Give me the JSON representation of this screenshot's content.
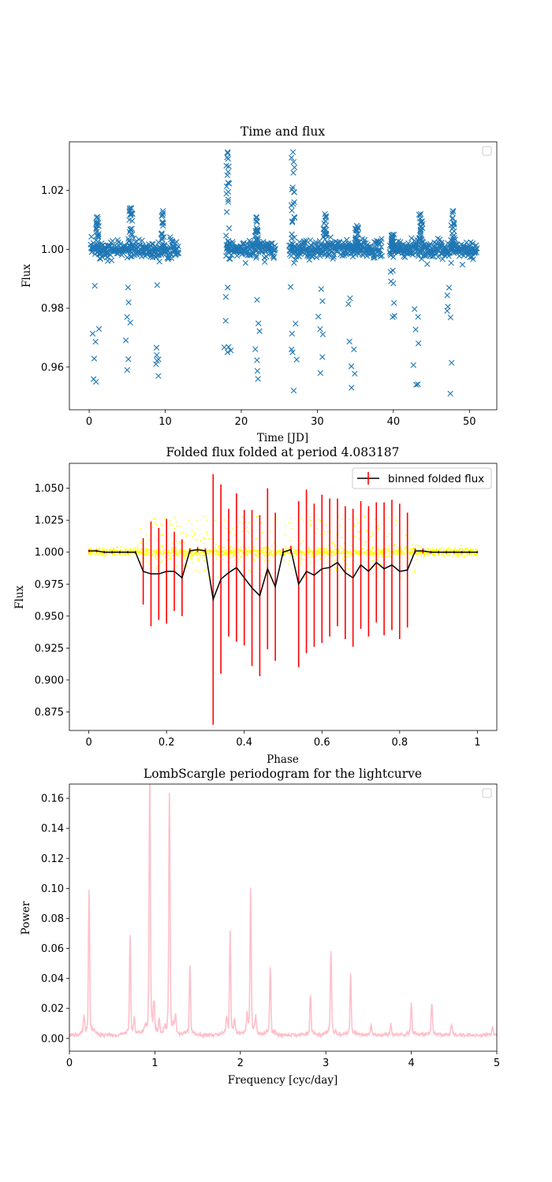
{
  "chart_data": [
    {
      "type": "scatter",
      "title": "Time and flux",
      "xlabel": "Time [JD]",
      "ylabel": "Flux",
      "xlim": [
        -2.6,
        53.6
      ],
      "ylim": [
        0.9455,
        1.0365
      ],
      "xticks": [
        0,
        10,
        20,
        30,
        40,
        50
      ],
      "yticks": [
        0.96,
        0.98,
        1.0,
        1.02
      ],
      "ytick_labels": [
        "0.96",
        "0.98",
        "1.00",
        "1.02"
      ],
      "marker": "x",
      "color": "#1f77b4",
      "legend": "top-right (empty)",
      "series": [
        {
          "segments": [
            [
              0.2,
              11.8
            ],
            [
              18.0,
              24.5
            ],
            [
              26.3,
              38.5
            ],
            [
              39.5,
              51.0
            ]
          ],
          "baseline": 1.0,
          "scatter": 0.0015,
          "transits": [
            {
              "x": 0.9,
              "depth": 0.045
            },
            {
              "x": 5.0,
              "depth": 0.041
            },
            {
              "x": 9.1,
              "depth": 0.043
            },
            {
              "x": 18.2,
              "depth": 0.035
            },
            {
              "x": 22.2,
              "depth": 0.044
            },
            {
              "x": 26.9,
              "depth": 0.048
            },
            {
              "x": 30.4,
              "depth": 0.042
            },
            {
              "x": 34.5,
              "depth": 0.047
            },
            {
              "x": 39.9,
              "depth": 0.023
            },
            {
              "x": 43.0,
              "depth": 0.046
            },
            {
              "x": 47.5,
              "depth": 0.049
            }
          ],
          "flares": [
            {
              "x": 1.1,
              "peak": 1.011
            },
            {
              "x": 5.5,
              "peak": 1.014
            },
            {
              "x": 9.7,
              "peak": 1.013
            },
            {
              "x": 18.2,
              "peak": 1.033
            },
            {
              "x": 22.0,
              "peak": 1.011
            },
            {
              "x": 26.8,
              "peak": 1.033
            },
            {
              "x": 31.0,
              "peak": 1.012
            },
            {
              "x": 35.2,
              "peak": 1.008
            },
            {
              "x": 39.9,
              "peak": 1.005
            },
            {
              "x": 43.6,
              "peak": 1.012
            },
            {
              "x": 47.8,
              "peak": 1.013
            }
          ]
        }
      ]
    },
    {
      "type": "line",
      "title": "Folded flux folded at period 4.083187",
      "xlabel": "Phase",
      "ylabel": "Flux",
      "xlim": [
        -0.05,
        1.05
      ],
      "ylim": [
        0.8605,
        1.0695
      ],
      "xticks": [
        0.0,
        0.2,
        0.4,
        0.6,
        0.8,
        1.0
      ],
      "yticks": [
        0.875,
        0.9,
        0.925,
        0.95,
        0.975,
        1.0,
        1.025,
        1.05
      ],
      "ytick_labels": [
        "0.875",
        "0.900",
        "0.925",
        "0.950",
        "0.975",
        "1.000",
        "1.025",
        "1.050"
      ],
      "legend": "top-right",
      "series": [
        {
          "name": "binned folded flux",
          "color": "#000000",
          "errorbar_color": "#ff0000",
          "x": [
            0.0,
            0.02,
            0.04,
            0.06,
            0.08,
            0.1,
            0.12,
            0.14,
            0.16,
            0.18,
            0.2,
            0.22,
            0.24,
            0.26,
            0.28,
            0.3,
            0.32,
            0.34,
            0.36,
            0.38,
            0.4,
            0.42,
            0.44,
            0.46,
            0.48,
            0.5,
            0.52,
            0.54,
            0.56,
            0.58,
            0.6,
            0.62,
            0.64,
            0.66,
            0.68,
            0.7,
            0.72,
            0.74,
            0.76,
            0.78,
            0.8,
            0.82,
            0.84,
            0.86,
            0.88,
            0.9,
            0.92,
            0.94,
            0.96,
            0.98,
            1.0
          ],
          "y": [
            1.001,
            1.001,
            1.0,
            1.0,
            1.0,
            1.0,
            1.0,
            0.985,
            0.983,
            0.983,
            0.985,
            0.985,
            0.98,
            1.001,
            1.002,
            1.001,
            0.963,
            0.979,
            0.984,
            0.988,
            0.98,
            0.972,
            0.966,
            0.987,
            0.973,
            1.0,
            1.002,
            0.975,
            0.985,
            0.982,
            0.987,
            0.988,
            0.992,
            0.984,
            0.98,
            0.99,
            0.985,
            0.992,
            0.987,
            0.99,
            0.985,
            0.986,
            1.001,
            1.001,
            1.0,
            1.0,
            1.0,
            1.0,
            1.0,
            1.0,
            1.0
          ],
          "err": [
            0.001,
            0.001,
            0.001,
            0.001,
            0.001,
            0.001,
            0.001,
            0.026,
            0.041,
            0.036,
            0.041,
            0.031,
            0.03,
            0.002,
            0.002,
            0.002,
            0.098,
            0.074,
            0.05,
            0.058,
            0.053,
            0.061,
            0.063,
            0.063,
            0.058,
            0.003,
            0.003,
            0.065,
            0.064,
            0.056,
            0.058,
            0.054,
            0.05,
            0.052,
            0.054,
            0.05,
            0.051,
            0.047,
            0.052,
            0.051,
            0.053,
            0.045,
            0.002,
            0.002,
            0.001,
            0.001,
            0.001,
            0.001,
            0.001,
            0.001,
            0.001
          ]
        },
        {
          "name": "",
          "type": "scatter",
          "color": "#ffff00",
          "note_points": "raw folded flux, small dots"
        }
      ]
    },
    {
      "type": "line",
      "title": "LombScargle periodogram for the lightcurve",
      "xlabel": "Frequency [cyc/day]",
      "ylabel": "Power",
      "xlim": [
        0,
        5
      ],
      "ylim": [
        -0.0085,
        0.1695
      ],
      "xticks": [
        0,
        1,
        2,
        3,
        4,
        5
      ],
      "yticks": [
        0.0,
        0.02,
        0.04,
        0.06,
        0.08,
        0.1,
        0.12,
        0.14,
        0.16
      ],
      "ytick_labels": [
        "0.00",
        "0.02",
        "0.04",
        "0.06",
        "0.08",
        "0.10",
        "0.12",
        "0.14",
        "0.16"
      ],
      "color": "#ffc0cb",
      "legend": "top-right (empty)",
      "peaks": [
        {
          "f": 0.17,
          "p": 0.01
        },
        {
          "f": 0.23,
          "p": 0.092
        },
        {
          "f": 0.71,
          "p": 0.063
        },
        {
          "f": 0.76,
          "p": 0.009
        },
        {
          "f": 0.94,
          "p": 0.162
        },
        {
          "f": 0.99,
          "p": 0.016
        },
        {
          "f": 1.05,
          "p": 0.01
        },
        {
          "f": 1.17,
          "p": 0.154
        },
        {
          "f": 1.24,
          "p": 0.011
        },
        {
          "f": 1.41,
          "p": 0.044
        },
        {
          "f": 1.84,
          "p": 0.01
        },
        {
          "f": 1.88,
          "p": 0.064
        },
        {
          "f": 1.93,
          "p": 0.009
        },
        {
          "f": 2.08,
          "p": 0.01
        },
        {
          "f": 2.12,
          "p": 0.091
        },
        {
          "f": 2.18,
          "p": 0.01
        },
        {
          "f": 2.35,
          "p": 0.042
        },
        {
          "f": 2.82,
          "p": 0.026
        },
        {
          "f": 3.06,
          "p": 0.054
        },
        {
          "f": 3.29,
          "p": 0.038
        },
        {
          "f": 3.53,
          "p": 0.007
        },
        {
          "f": 3.76,
          "p": 0.007
        },
        {
          "f": 4.0,
          "p": 0.021
        },
        {
          "f": 4.24,
          "p": 0.021
        },
        {
          "f": 4.47,
          "p": 0.007
        },
        {
          "f": 4.95,
          "p": 0.005
        }
      ]
    }
  ]
}
